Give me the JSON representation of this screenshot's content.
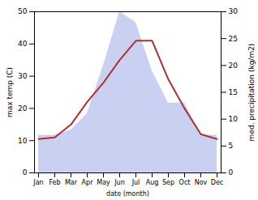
{
  "chart_data": {
    "type": "line",
    "xlabel": "date (month)",
    "ylabel": "max temp (C)",
    "y2label": "med. precipitation (kg/m2)",
    "categories": [
      "Jan",
      "Feb",
      "Mar",
      "Apr",
      "May",
      "Jun",
      "Jul",
      "Aug",
      "Sep",
      "Oct",
      "Nov",
      "Dec"
    ],
    "series": [
      {
        "type": "area",
        "axis": "y2",
        "color": "#b8c0ee",
        "values": [
          7,
          7,
          8,
          11,
          20,
          30,
          28,
          19,
          13,
          13,
          7,
          7
        ]
      },
      {
        "type": "line",
        "color": "#b03030",
        "values": [
          10.5,
          11.0,
          15.0,
          22.0,
          28.0,
          35.0,
          41.0,
          41.0,
          29.0,
          20.0,
          12.0,
          10.5
        ]
      }
    ],
    "ylim": [
      0,
      50
    ],
    "yticks": [
      0,
      10,
      20,
      30,
      40,
      50
    ],
    "y2lim": [
      0,
      30
    ],
    "y2ticks": [
      0,
      5,
      10,
      15,
      20,
      25,
      30
    ],
    "grid": false
  }
}
